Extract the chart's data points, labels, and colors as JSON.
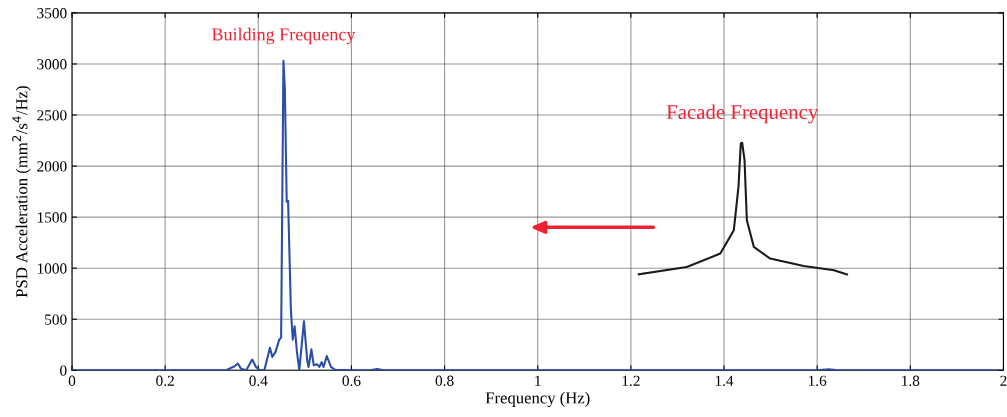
{
  "chart_data": {
    "type": "line",
    "xlabel": "Frequency (Hz)",
    "ylabel": "PSD Acceleration (mm$^{2}$/s$^{4}$/Hz)",
    "xlim": [
      0,
      2
    ],
    "ylim": [
      0,
      3500
    ],
    "xticks": [
      0,
      0.2,
      0.4,
      0.6,
      0.8,
      1,
      1.2,
      1.4,
      1.6,
      1.8,
      2
    ],
    "yticks": [
      0,
      500,
      1000,
      1500,
      2000,
      2500,
      3000,
      3500
    ],
    "grid": true,
    "legend": false,
    "line_style": "solid",
    "marker": "none",
    "series": [
      {
        "color": "#2a4fa8",
        "x": [
          0,
          0.331,
          0.349,
          0.356,
          0.363,
          0.374,
          0.387,
          0.395,
          0.402,
          0.413,
          0.425,
          0.43,
          0.437,
          0.445,
          0.449,
          0.454,
          0.457,
          0.461,
          0.464,
          0.47,
          0.474,
          0.478,
          0.483,
          0.488,
          0.498,
          0.505,
          0.508,
          0.514,
          0.519,
          0.526,
          0.531,
          0.536,
          0.54,
          0.547,
          0.556,
          0.565,
          0.607,
          0.64,
          0.655,
          0.67,
          1.6,
          1.625,
          1.645,
          2
        ],
        "values": [
          0,
          0,
          40,
          66,
          16,
          0,
          105,
          33,
          5,
          0,
          220,
          130,
          180,
          300,
          320,
          3030,
          2760,
          1650,
          1660,
          590,
          300,
          430,
          180,
          0,
          480,
          100,
          33,
          205,
          50,
          60,
          33,
          80,
          33,
          140,
          33,
          5,
          0,
          0,
          12,
          0,
          0,
          10,
          0,
          0
        ]
      },
      {
        "color": "#1a1a1a",
        "x": [
          1.217,
          1.32,
          1.392,
          1.421,
          1.431,
          1.436,
          1.439,
          1.444,
          1.449,
          1.464,
          1.499,
          1.571,
          1.636,
          1.664
        ],
        "values": [
          941,
          1012,
          1143,
          1372,
          1796,
          2222,
          2228,
          2058,
          1470,
          1208,
          1094,
          1022,
          980,
          938
        ]
      }
    ],
    "annotations": [
      {
        "text": "Building Frequency",
        "x": 0.454,
        "y": 3030
      },
      {
        "text": "Facade Frequency",
        "x": 1.439,
        "y": 2228
      }
    ]
  }
}
